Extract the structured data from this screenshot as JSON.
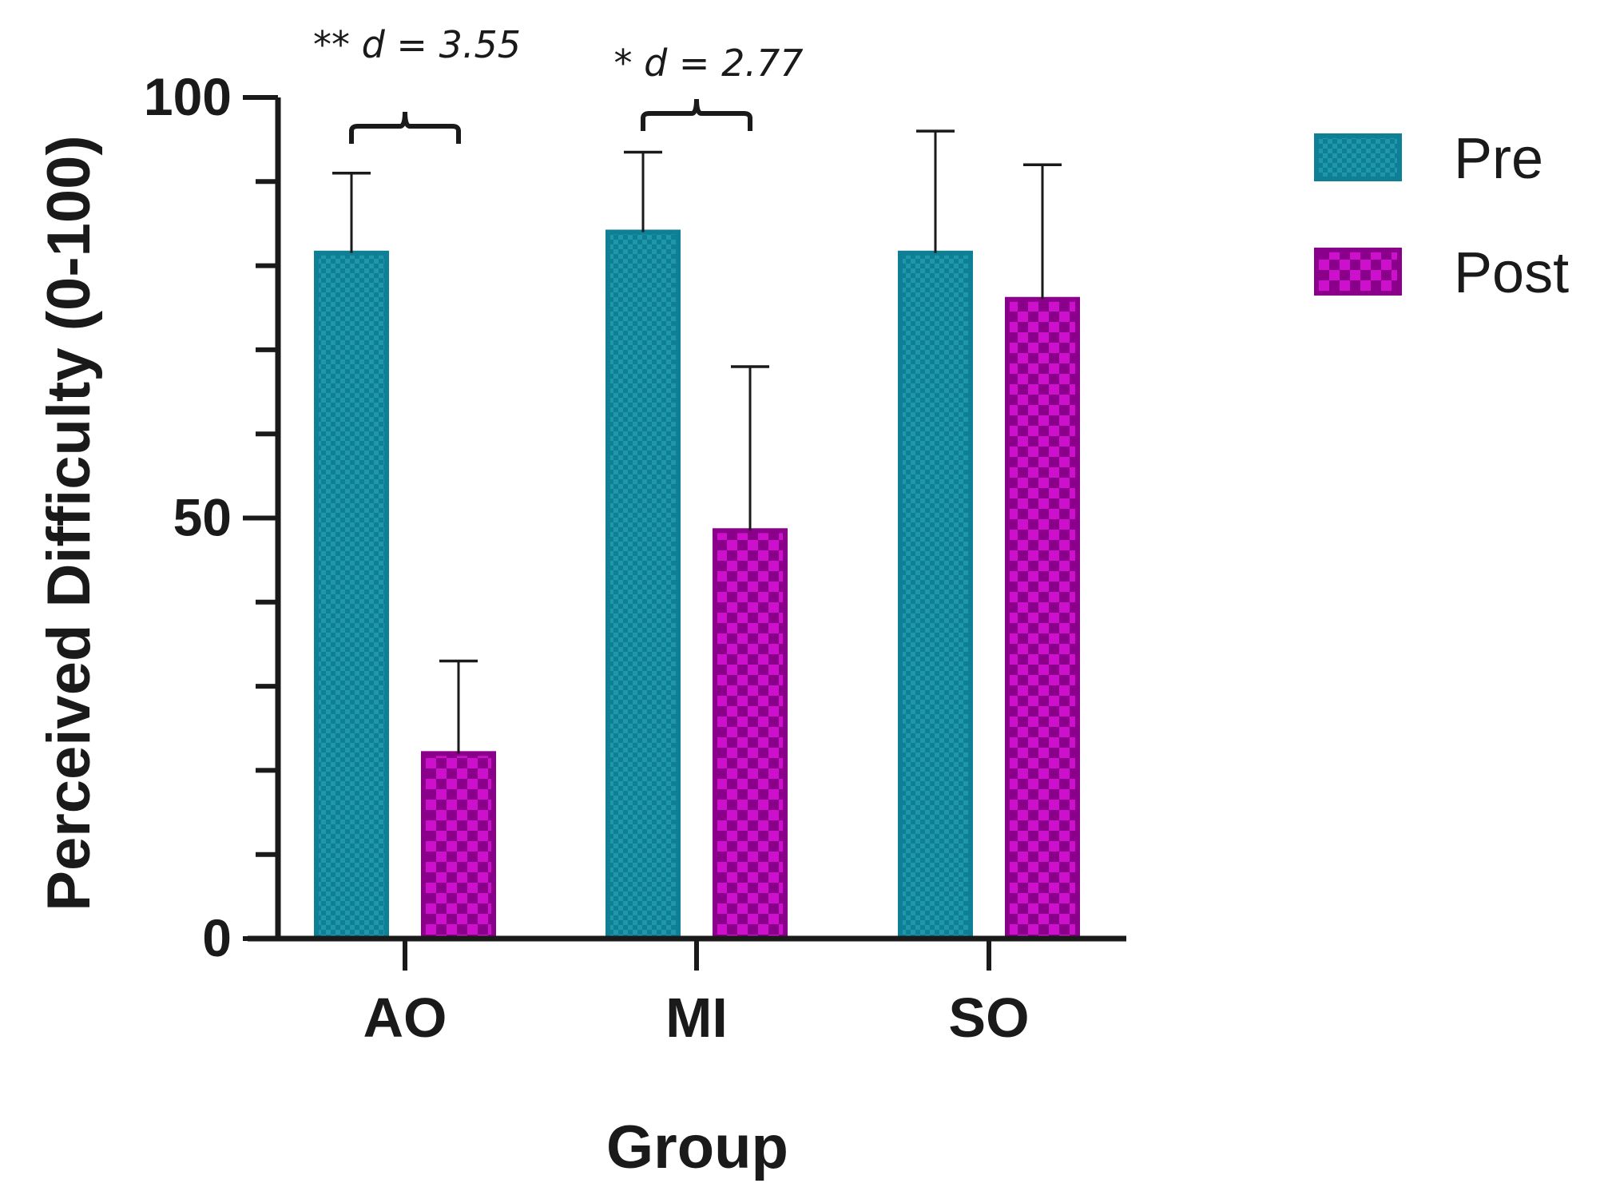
{
  "chart_data": {
    "type": "bar",
    "title": "",
    "xlabel": "Group",
    "ylabel": "Perceived Difficulty (0-100)",
    "ylim": [
      0,
      100
    ],
    "yticks": [
      0,
      50,
      100
    ],
    "yticks_label": [
      "0",
      "50",
      "100"
    ],
    "categories": [
      "AO",
      "MI",
      "SO"
    ],
    "series": [
      {
        "name": "Pre",
        "color": "#0f7f95",
        "pattern_color": "#1f97ab",
        "values": [
          81.5,
          84,
          81.5
        ],
        "errors": [
          9.5,
          9.5,
          14.5
        ]
      },
      {
        "name": "Post",
        "color": "#8b008b",
        "pattern_color": "#cc10cc",
        "values": [
          22,
          48.5,
          76
        ],
        "errors": [
          11,
          19.5,
          16
        ]
      }
    ],
    "legend_position": "top-right",
    "grid": false,
    "annotations": [
      {
        "category": "AO",
        "text": "** d = 3.55"
      },
      {
        "category": "MI",
        "text": "* d = 2.77"
      }
    ]
  }
}
